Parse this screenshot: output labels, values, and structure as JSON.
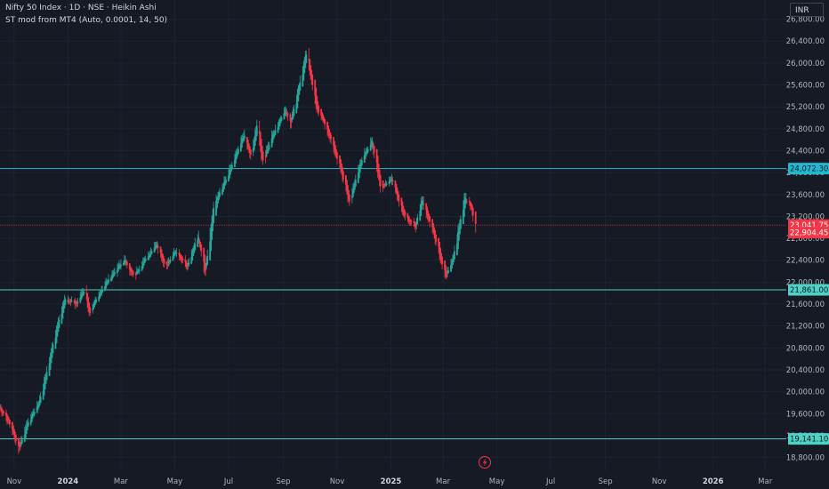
{
  "legend": {
    "symbol_line": "Nifty 50 Index · 1D · NSE · Heikin Ashi",
    "indicator_line": "ST mod from MT4 (Auto, 0.0001, 14, 50)"
  },
  "currency": "INR",
  "colors": {
    "background": "#161a25",
    "grid": "#1f2330",
    "up": "#26a69a",
    "down": "#f23645",
    "level_line": "#4fd1c5",
    "resistance_line": "#22b8cf",
    "current_price_line": "#f23645",
    "axis_text": "#b2b5be"
  },
  "chart_data": {
    "type": "candlestick",
    "x_axis": {
      "start": "2023-10-16",
      "end": "2026-03-25",
      "tick_labels": [
        {
          "label": "Nov",
          "date": "2023-11-01"
        },
        {
          "label": "2024",
          "date": "2024-01-01",
          "bold": true
        },
        {
          "label": "Mar",
          "date": "2024-03-01"
        },
        {
          "label": "May",
          "date": "2024-05-01"
        },
        {
          "label": "Jul",
          "date": "2024-07-01"
        },
        {
          "label": "Sep",
          "date": "2024-09-01"
        },
        {
          "label": "Nov",
          "date": "2024-11-01"
        },
        {
          "label": "2025",
          "date": "2025-01-01",
          "bold": true
        },
        {
          "label": "Mar",
          "date": "2025-03-01"
        },
        {
          "label": "May",
          "date": "2025-05-01"
        },
        {
          "label": "Jul",
          "date": "2025-07-01"
        },
        {
          "label": "Sep",
          "date": "2025-09-01"
        },
        {
          "label": "Nov",
          "date": "2025-11-01"
        },
        {
          "label": "2026",
          "date": "2026-01-01",
          "bold": true
        },
        {
          "label": "Mar",
          "date": "2026-03-01"
        }
      ]
    },
    "y_axis": {
      "range": [
        18550,
        27150
      ],
      "tick_labels": [
        "26,800.00",
        "26,400.00",
        "26,000.00",
        "25,600.00",
        "25,200.00",
        "24,800.00",
        "24,400.00",
        "24,000.00",
        "23,600.00",
        "23,200.00",
        "22,800.00",
        "22,400.00",
        "22,000.00",
        "21,600.00",
        "21,200.00",
        "20,800.00",
        "20,400.00",
        "20,000.00",
        "19,600.00",
        "19,200.00",
        "18,800.00"
      ],
      "tick_values": [
        26800,
        26400,
        26000,
        25600,
        25200,
        24800,
        24400,
        24000,
        23600,
        23200,
        22800,
        22400,
        22000,
        21600,
        21200,
        20800,
        20400,
        20000,
        19600,
        19200,
        18800
      ]
    },
    "horizontal_lines": [
      {
        "price": 24072.3,
        "label": "24,072.30",
        "style": "resistance"
      },
      {
        "price": 21861.0,
        "label": "21,861.00",
        "style": "level"
      },
      {
        "price": 19141.1,
        "label": "19,141.10",
        "style": "level"
      }
    ],
    "price_labels": [
      {
        "price": 23041.75,
        "label": "23,041.75",
        "kind": "current"
      },
      {
        "price": 22904.45,
        "label": "22,904.45",
        "kind": "secondary"
      }
    ],
    "series_anchors": [
      {
        "date": "2023-10-16",
        "close": 19700
      },
      {
        "date": "2023-10-24",
        "close": 19500
      },
      {
        "date": "2023-11-01",
        "close": 19200
      },
      {
        "date": "2023-11-06",
        "close": 18950
      },
      {
        "date": "2023-11-15",
        "close": 19400
      },
      {
        "date": "2023-11-30",
        "close": 19850
      },
      {
        "date": "2023-12-15",
        "close": 20900
      },
      {
        "date": "2023-12-28",
        "close": 21700
      },
      {
        "date": "2024-01-10",
        "close": 21600
      },
      {
        "date": "2024-01-20",
        "close": 21900
      },
      {
        "date": "2024-01-25",
        "close": 21400
      },
      {
        "date": "2024-02-05",
        "close": 21800
      },
      {
        "date": "2024-02-20",
        "close": 22150
      },
      {
        "date": "2024-03-05",
        "close": 22400
      },
      {
        "date": "2024-03-15",
        "close": 22100
      },
      {
        "date": "2024-03-25",
        "close": 22350
      },
      {
        "date": "2024-04-10",
        "close": 22700
      },
      {
        "date": "2024-04-20",
        "close": 22300
      },
      {
        "date": "2024-05-01",
        "close": 22550
      },
      {
        "date": "2024-05-15",
        "close": 22300
      },
      {
        "date": "2024-05-27",
        "close": 22850
      },
      {
        "date": "2024-06-04",
        "close": 22150
      },
      {
        "date": "2024-06-14",
        "close": 23400
      },
      {
        "date": "2024-07-01",
        "close": 24000
      },
      {
        "date": "2024-07-18",
        "close": 24700
      },
      {
        "date": "2024-07-26",
        "close": 24300
      },
      {
        "date": "2024-08-02",
        "close": 24900
      },
      {
        "date": "2024-08-08",
        "close": 24200
      },
      {
        "date": "2024-08-20",
        "close": 24700
      },
      {
        "date": "2024-09-02",
        "close": 25150
      },
      {
        "date": "2024-09-09",
        "close": 24900
      },
      {
        "date": "2024-09-27",
        "close": 26200
      },
      {
        "date": "2024-10-07",
        "close": 25250
      },
      {
        "date": "2024-10-20",
        "close": 24800
      },
      {
        "date": "2024-11-04",
        "close": 24100
      },
      {
        "date": "2024-11-15",
        "close": 23450
      },
      {
        "date": "2024-11-25",
        "close": 24100
      },
      {
        "date": "2024-12-10",
        "close": 24600
      },
      {
        "date": "2024-12-20",
        "close": 23700
      },
      {
        "date": "2025-01-01",
        "close": 23900
      },
      {
        "date": "2025-01-15",
        "close": 23250
      },
      {
        "date": "2025-01-28",
        "close": 23000
      },
      {
        "date": "2025-02-05",
        "close": 23500
      },
      {
        "date": "2025-02-18",
        "close": 22900
      },
      {
        "date": "2025-03-04",
        "close": 22100
      },
      {
        "date": "2025-03-12",
        "close": 22450
      },
      {
        "date": "2025-03-25",
        "close": 23550
      },
      {
        "date": "2025-04-02",
        "close": 23350
      },
      {
        "date": "2025-04-07",
        "close": 22950
      }
    ]
  }
}
